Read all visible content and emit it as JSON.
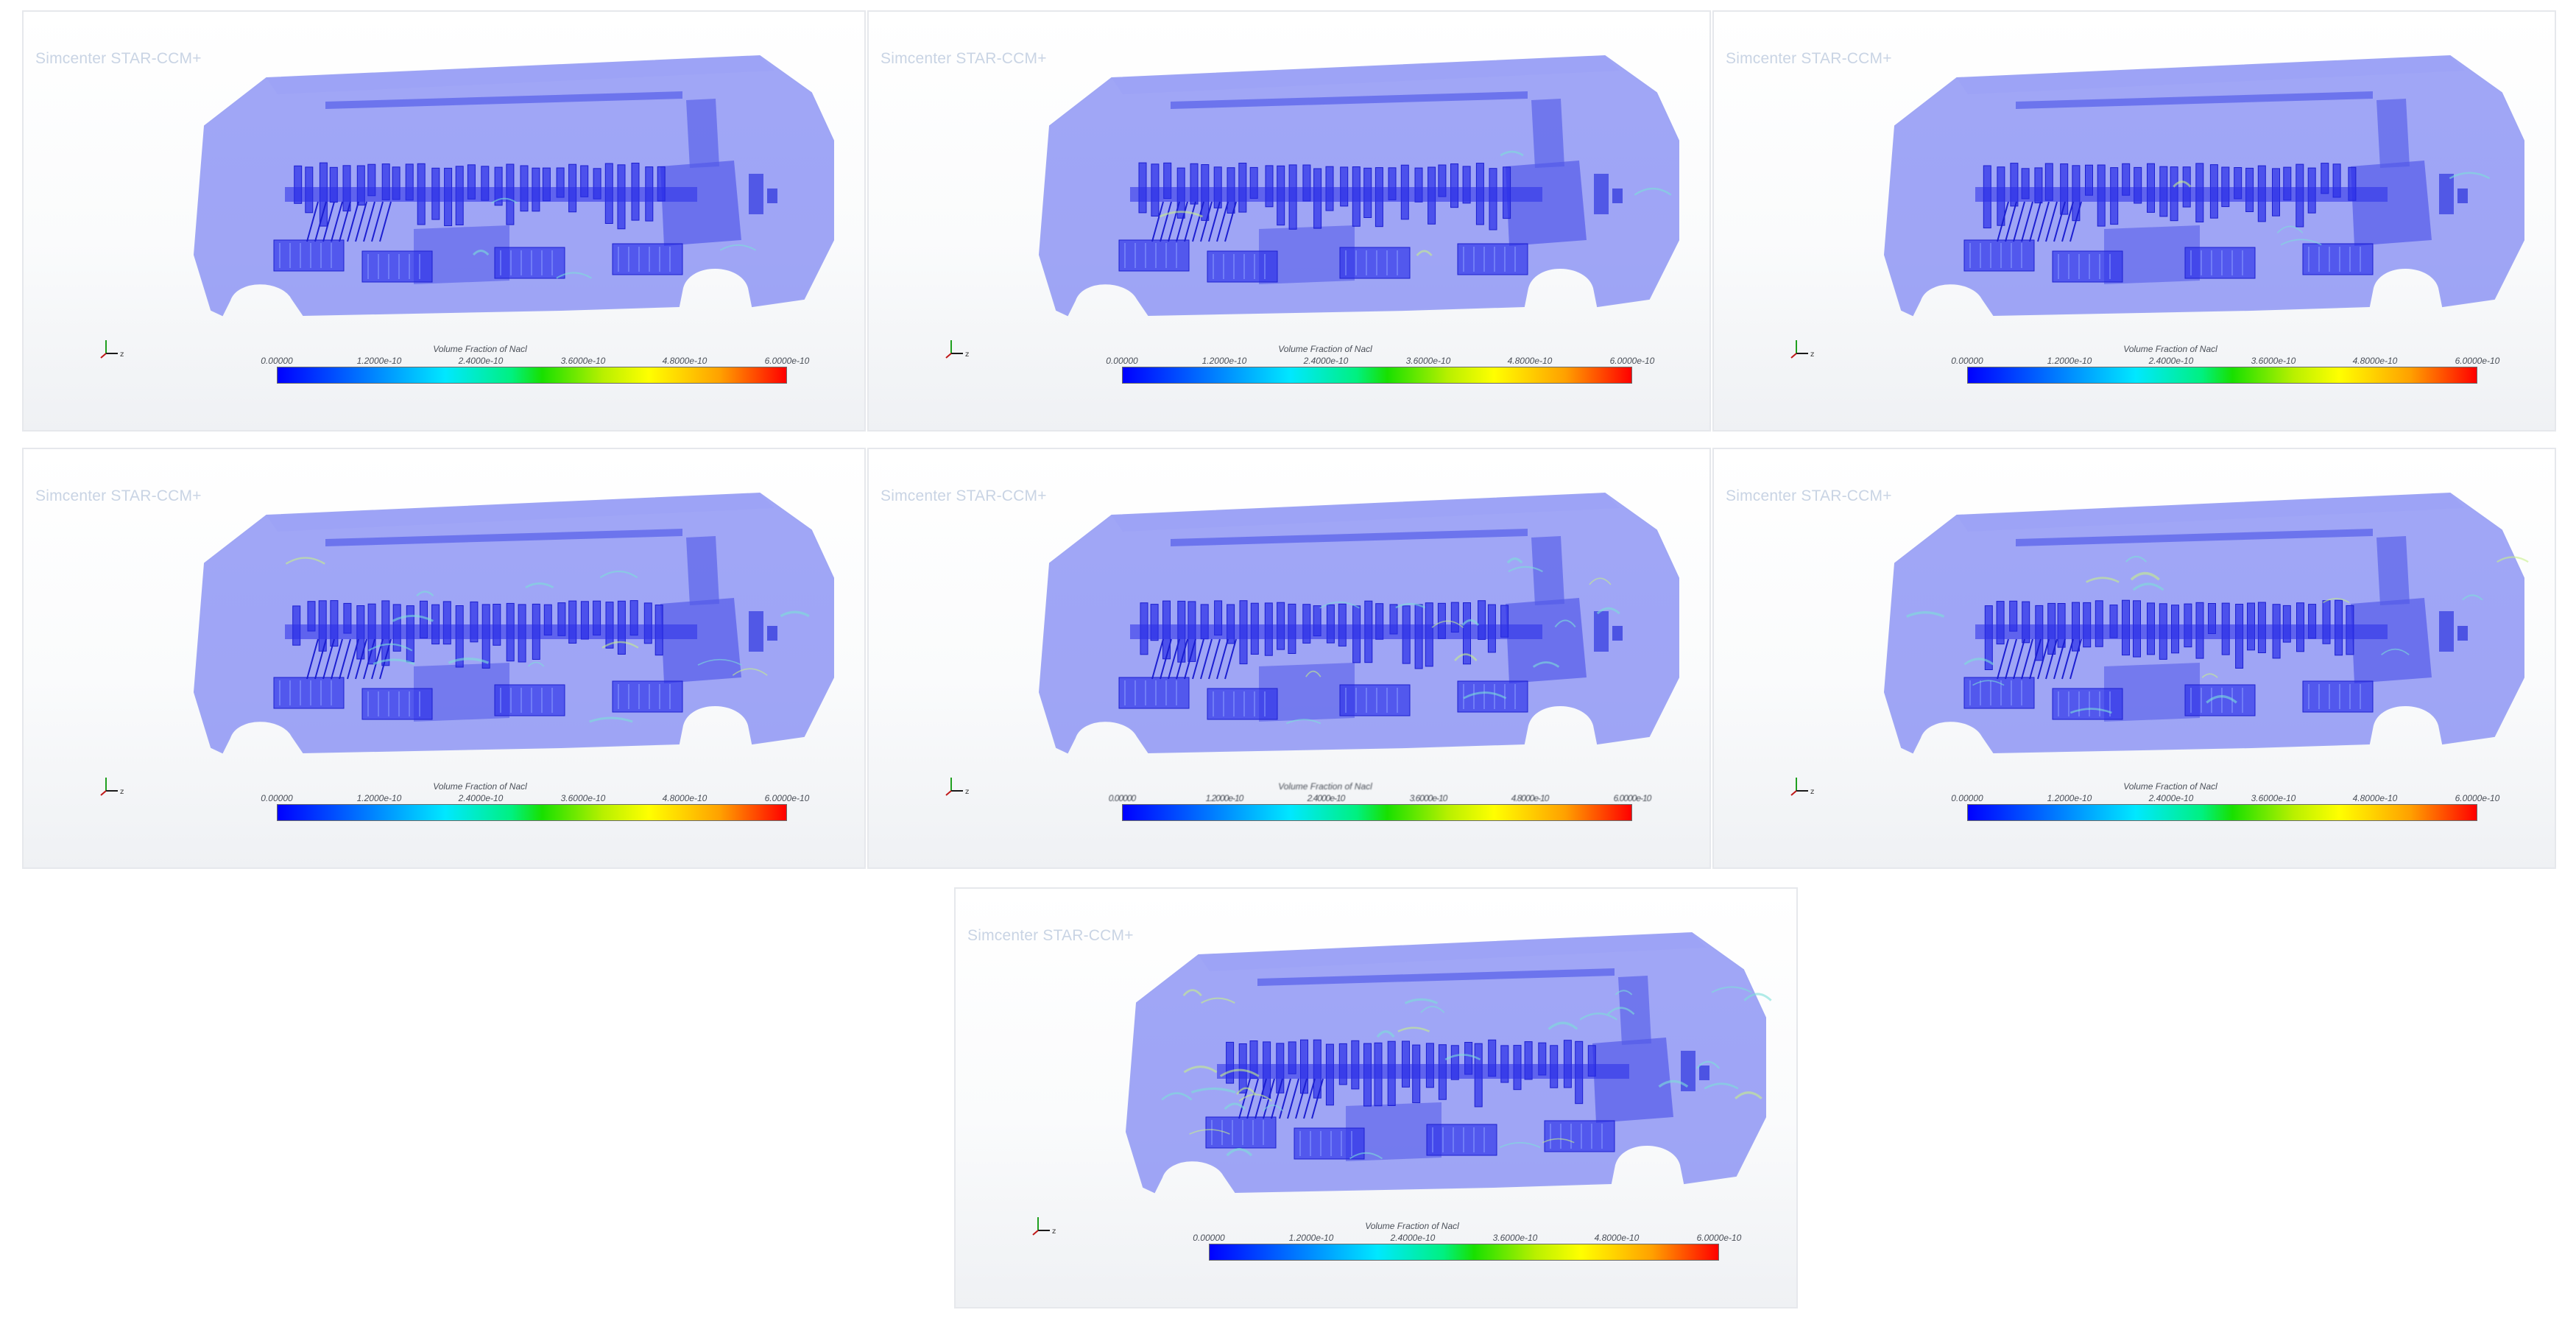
{
  "brand": "Simcenter STAR-CCM+",
  "legend": {
    "title": "Volume Fraction of Nacl",
    "ticks": [
      "0.00000",
      "1.2000e-10",
      "2.4000e-10",
      "3.6000e-10",
      "4.8000e-10",
      "6.0000e-10"
    ],
    "colormap": [
      "#0000ff",
      "#00e8ff",
      "#18e000",
      "#ffff00",
      "#ff0000"
    ]
  },
  "colors": {
    "body_fill": "#7b83f2",
    "component_fill": "#2a2ee8",
    "hotspot": "#7de0d8"
  },
  "panels": [
    {
      "id": 1,
      "hotspot_level": "low"
    },
    {
      "id": 2,
      "hotspot_level": "low"
    },
    {
      "id": 3,
      "hotspot_level": "low"
    },
    {
      "id": 4,
      "hotspot_level": "medium"
    },
    {
      "id": 5,
      "hotspot_level": "medium",
      "legend_text_garbled": true
    },
    {
      "id": 6,
      "hotspot_level": "medium"
    },
    {
      "id": 7,
      "hotspot_level": "high"
    }
  ]
}
